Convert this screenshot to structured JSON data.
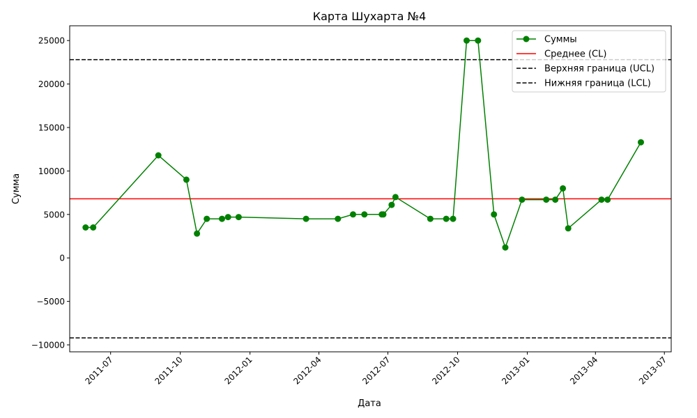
{
  "chart_data": {
    "type": "line",
    "title": "Карта Шухарта №4",
    "xlabel": "Дата",
    "ylabel": "Сумма",
    "xlim": [
      "2011-05-08",
      "2013-07-10"
    ],
    "ylim": [
      -10800,
      26700
    ],
    "x_ticks": [
      "2011-07-01",
      "2011-10-01",
      "2012-01-01",
      "2012-04-01",
      "2012-07-01",
      "2012-10-01",
      "2013-01-01",
      "2013-04-01",
      "2013-07-01"
    ],
    "x_tick_labels": [
      "2011-07",
      "2011-10",
      "2012-01",
      "2012-04",
      "2012-07",
      "2012-10",
      "2013-01",
      "2013-04",
      "2013-07"
    ],
    "y_ticks": [
      -10000,
      -5000,
      0,
      5000,
      10000,
      15000,
      20000,
      25000
    ],
    "y_tick_labels": [
      "−10000",
      "−5000",
      "0",
      "5000",
      "10000",
      "15000",
      "20000",
      "25000"
    ],
    "grid": false,
    "legend_position": "upper-right",
    "series": [
      {
        "name": "Суммы",
        "color": "#008000",
        "marker": "circle",
        "points": [
          {
            "x": "2011-05-29",
            "y": 3500
          },
          {
            "x": "2011-06-08",
            "y": 3500
          },
          {
            "x": "2011-09-02",
            "y": 11800
          },
          {
            "x": "2011-10-09",
            "y": 9000
          },
          {
            "x": "2011-10-23",
            "y": 2800
          },
          {
            "x": "2011-11-05",
            "y": 4500
          },
          {
            "x": "2011-11-25",
            "y": 4500
          },
          {
            "x": "2011-12-03",
            "y": 4700
          },
          {
            "x": "2011-12-17",
            "y": 4700
          },
          {
            "x": "2012-03-15",
            "y": 4500
          },
          {
            "x": "2012-04-26",
            "y": 4500
          },
          {
            "x": "2012-05-16",
            "y": 5000
          },
          {
            "x": "2012-05-31",
            "y": 5000
          },
          {
            "x": "2012-06-23",
            "y": 5000
          },
          {
            "x": "2012-06-25",
            "y": 5000
          },
          {
            "x": "2012-07-06",
            "y": 6100
          },
          {
            "x": "2012-07-11",
            "y": 7000
          },
          {
            "x": "2012-08-26",
            "y": 4500
          },
          {
            "x": "2012-09-16",
            "y": 4500
          },
          {
            "x": "2012-09-25",
            "y": 4500
          },
          {
            "x": "2012-10-13",
            "y": 25000
          },
          {
            "x": "2012-10-28",
            "y": 25000
          },
          {
            "x": "2012-11-18",
            "y": 5000
          },
          {
            "x": "2012-12-03",
            "y": 1200
          },
          {
            "x": "2012-12-25",
            "y": 6700
          },
          {
            "x": "2013-01-26",
            "y": 6700
          },
          {
            "x": "2013-02-07",
            "y": 6700
          },
          {
            "x": "2013-02-17",
            "y": 8000
          },
          {
            "x": "2013-02-24",
            "y": 3400
          },
          {
            "x": "2013-04-09",
            "y": 6700
          },
          {
            "x": "2013-04-17",
            "y": 6700
          },
          {
            "x": "2013-05-31",
            "y": 13300
          }
        ]
      },
      {
        "name": "Среднее (CL)",
        "type": "hline",
        "y": 6800,
        "color": "#ff0000",
        "dash": "solid"
      },
      {
        "name": "Верхняя граница (UCL)",
        "type": "hline",
        "y": 22800,
        "color": "#000000",
        "dash": "dashed"
      },
      {
        "name": "Нижняя граница (LCL)",
        "type": "hline",
        "y": -9200,
        "color": "#000000",
        "dash": "dashed"
      }
    ]
  }
}
